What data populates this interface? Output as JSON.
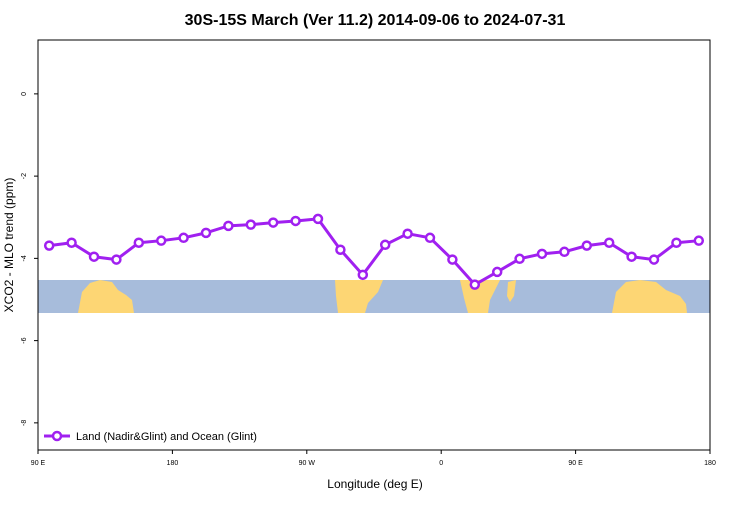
{
  "chart_data": {
    "type": "line",
    "title": "30S-15S March (Ver 11.2)   2014-09-06 to 2024-07-31",
    "x_label": "Longitude (deg E)",
    "y_label": "XCO2 - MLO trend (ppm)",
    "x": [
      97.5,
      112.5,
      127.5,
      142.5,
      157.5,
      172.5,
      187.5,
      202.5,
      217.5,
      232.5,
      247.5,
      262.5,
      277.5,
      292.5,
      307.5,
      322.5,
      337.5,
      352.5,
      367.5,
      382.5,
      397.5,
      412.5,
      427.5,
      442.5,
      457.5,
      472.5,
      487.5,
      502.5,
      517.5,
      532.5
    ],
    "series": [
      {
        "name": "Land (Nadir&Glint) and Ocean (Glint)",
        "color": "#a020f0",
        "values": [
          -3.69,
          -3.62,
          -3.96,
          -4.03,
          -3.62,
          -3.57,
          -3.5,
          -3.38,
          -3.21,
          -3.18,
          -3.13,
          -3.09,
          -3.04,
          -3.79,
          -4.4,
          -3.67,
          -3.4,
          -3.5,
          -4.03,
          -4.64,
          -4.33,
          -4.01,
          -3.89,
          -3.84,
          -3.69,
          -3.62,
          -3.96,
          -4.03,
          -3.62,
          -3.57
        ]
      }
    ],
    "xlim": [
      90,
      540
    ],
    "xticks": [
      {
        "value": 90,
        "label": "90 E"
      },
      {
        "value": 180,
        "label": "180"
      },
      {
        "value": 270,
        "label": "90 W"
      },
      {
        "value": 360,
        "label": "0"
      },
      {
        "value": 450,
        "label": "90 E"
      },
      {
        "value": 540,
        "label": "180"
      }
    ],
    "ylim": [
      -8.66,
      1.31
    ],
    "yticks": [
      0,
      -2,
      -4,
      -6,
      -8
    ],
    "legend": "lower left"
  }
}
